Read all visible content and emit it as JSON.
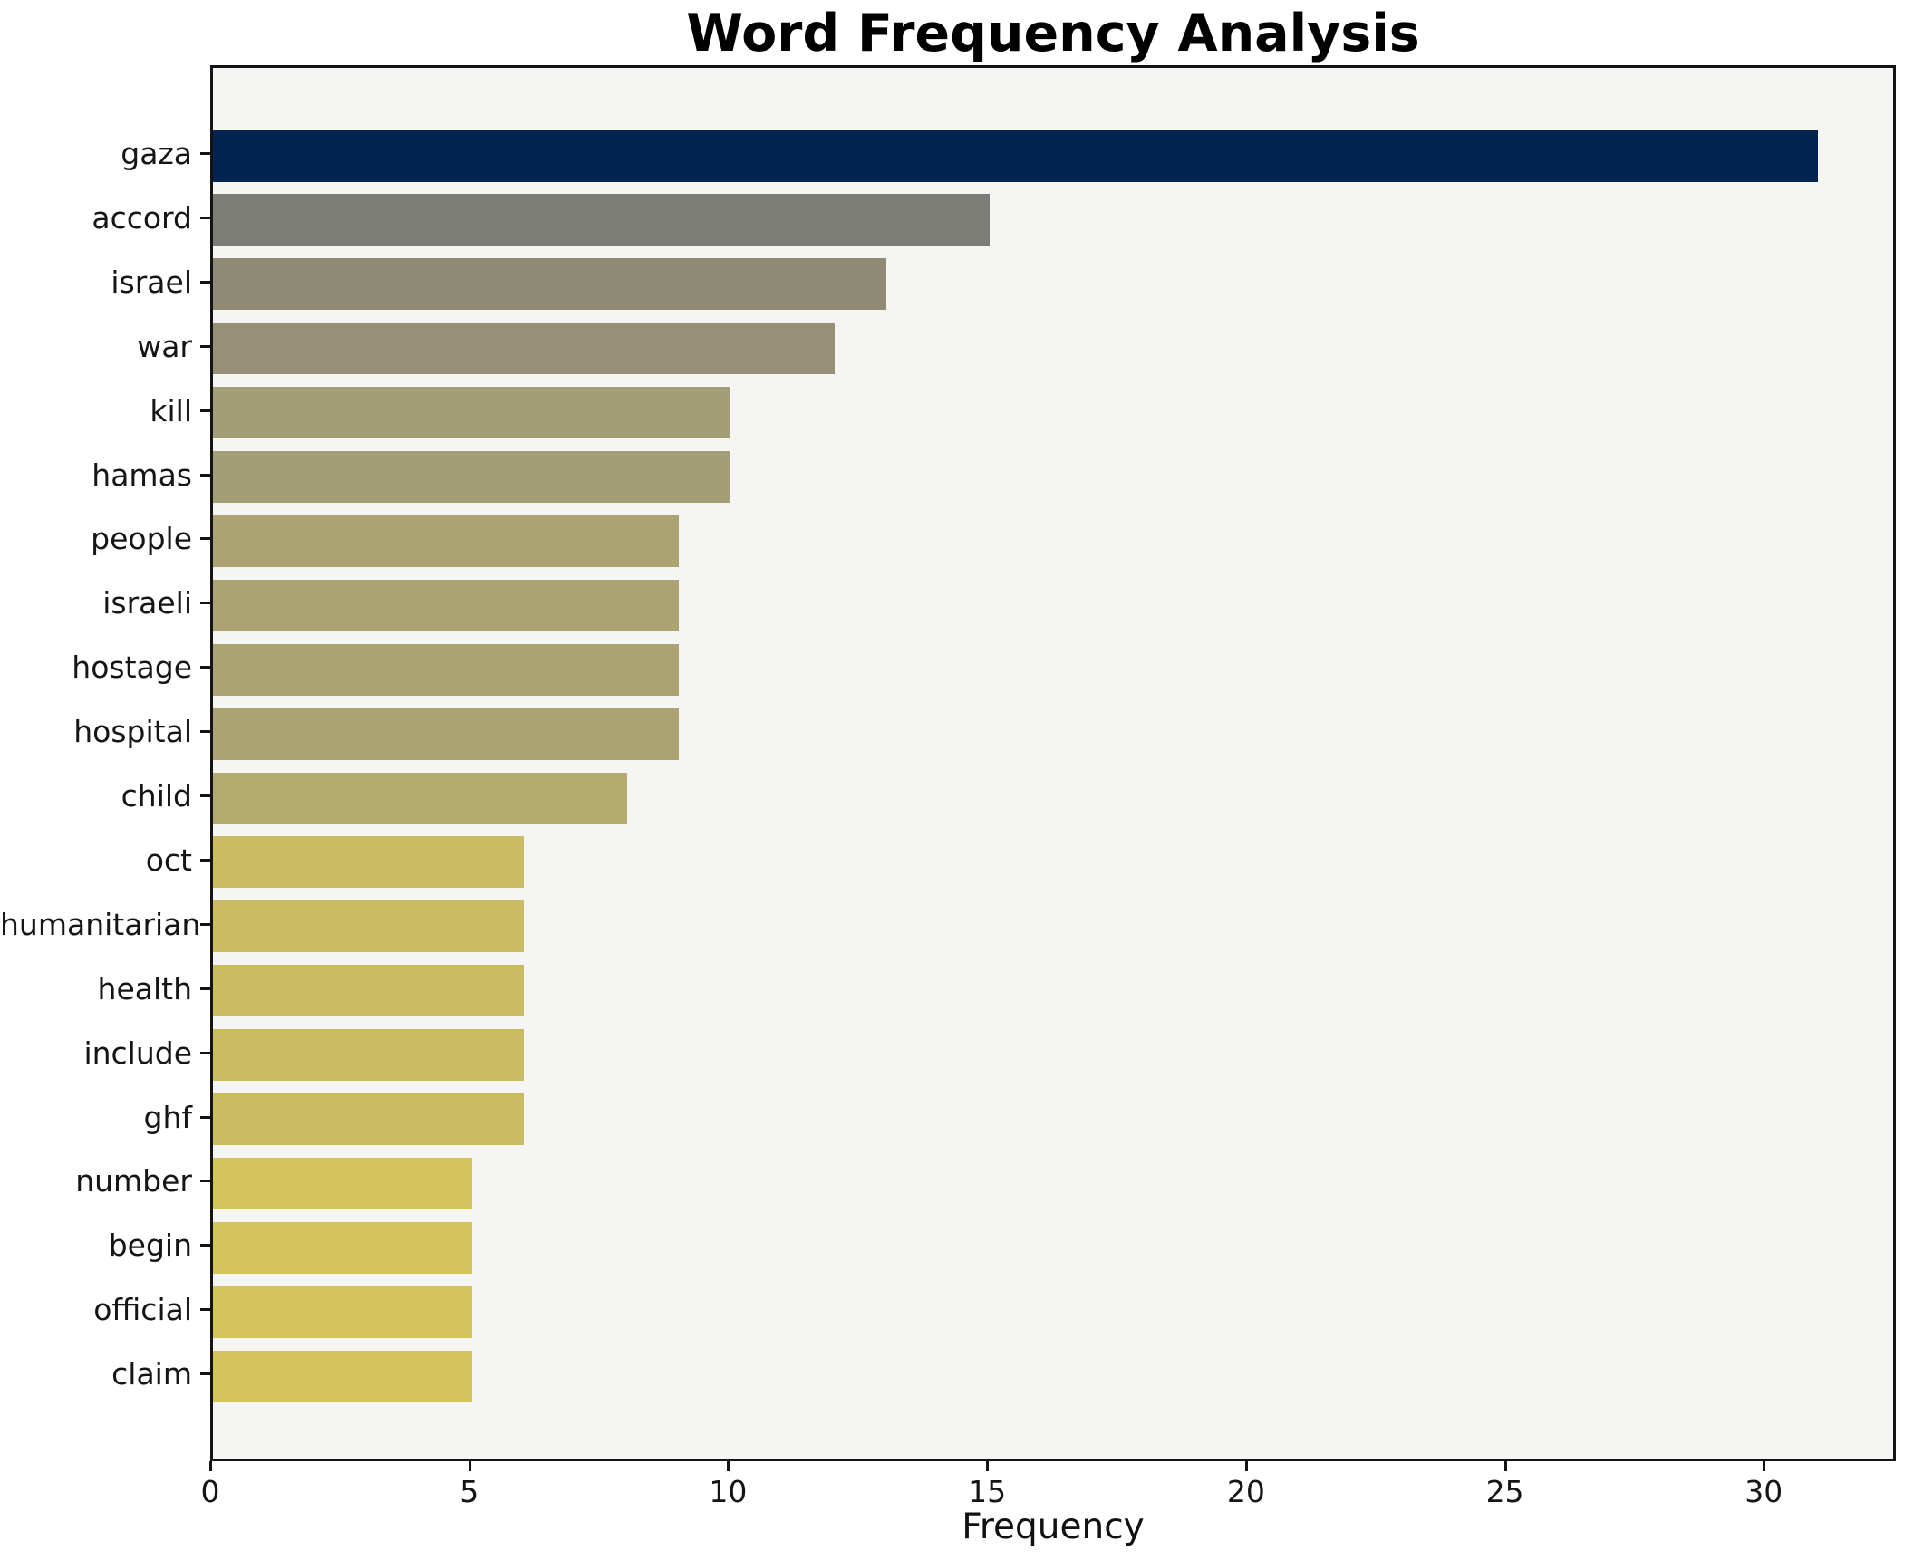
{
  "chart_data": {
    "type": "bar",
    "orientation": "horizontal",
    "title": "Word Frequency Analysis",
    "xlabel": "Frequency",
    "ylabel": "",
    "categories": [
      "gaza",
      "accord",
      "israel",
      "war",
      "kill",
      "hamas",
      "people",
      "israeli",
      "hostage",
      "hospital",
      "child",
      "oct",
      "humanitarian",
      "health",
      "include",
      "ghf",
      "number",
      "begin",
      "official",
      "claim"
    ],
    "values": [
      31,
      15,
      13,
      12,
      10,
      10,
      9,
      9,
      9,
      9,
      8,
      6,
      6,
      6,
      6,
      6,
      5,
      5,
      5,
      5
    ],
    "bar_colors": [
      "#032450",
      "#7d7d77",
      "#8e8a75",
      "#969078",
      "#a49e77",
      "#a49e77",
      "#aba372",
      "#aba372",
      "#aba372",
      "#aba372",
      "#b3aa6d",
      "#cbbc63",
      "#cbbc63",
      "#cbbc63",
      "#cbbc63",
      "#cbbc63",
      "#d3c45c",
      "#d3c45c",
      "#d3c45c",
      "#d3c45c"
    ],
    "xticks": [
      0,
      5,
      10,
      15,
      20,
      25,
      30
    ],
    "xlim": [
      0,
      32.55
    ],
    "grid": false,
    "legend": "none",
    "plot_background": "#f5f5f4",
    "figure_background": "#ffffff",
    "spine_color": "#141414",
    "colormap_note": "cividis-style gradient from dark navy (highest frequency) to gold (lowest)"
  }
}
